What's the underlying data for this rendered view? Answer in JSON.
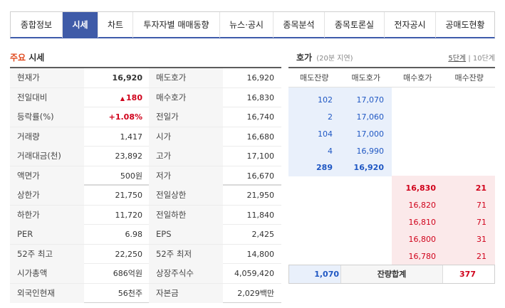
{
  "tabs": [
    "종합정보",
    "시세",
    "차트",
    "투자자별 매매동향",
    "뉴스·공시",
    "종목분석",
    "종목토론실",
    "전자공시",
    "공매도현황"
  ],
  "left": {
    "title_highlight": "주요",
    "title_rest": " 시세",
    "rows": [
      {
        "l1": "현재가",
        "v1": "16,920",
        "l2": "매도호가",
        "v2": "16,920"
      },
      {
        "l1": "전일대비",
        "v1": "180",
        "v1_icon": "▲",
        "l2": "매수호가",
        "v2": "16,830"
      },
      {
        "l1": "등락률(%)",
        "v1": "+1.08%",
        "l2": "전일가",
        "v2": "16,740"
      },
      {
        "l1": "거래량",
        "v1": "1,417",
        "l2": "시가",
        "v2": "16,680"
      },
      {
        "l1": "거래대금(천)",
        "v1": "23,892",
        "l2": "고가",
        "v2": "17,100"
      },
      {
        "l1": "액면가",
        "v1": "500원",
        "l2": "저가",
        "v2": "16,670"
      },
      {
        "l1": "상한가",
        "v1": "21,750",
        "l2": "전일상한",
        "v2": "21,950"
      },
      {
        "l1": "하한가",
        "v1": "11,720",
        "l2": "전일하한",
        "v2": "11,840"
      },
      {
        "l1": "PER",
        "v1": "6.98",
        "l2": "EPS",
        "v2": "2,425"
      },
      {
        "l1": "52주 최고",
        "v1": "22,250",
        "l2": "52주 최저",
        "v2": "14,800"
      },
      {
        "l1": "시가총액",
        "v1": "686억원",
        "l2": "상장주식수",
        "v2": "4,059,420"
      },
      {
        "l1": "외국인현재",
        "v1": "56천주",
        "l2": "자본금",
        "v2": "2,029백만"
      }
    ]
  },
  "right": {
    "title": "호가",
    "subtitle": "(20분 지연)",
    "step5": "5단계",
    "step_sep": "|",
    "step10": "10단계",
    "headers": [
      "매도잔량",
      "매도호가",
      "매수호가",
      "매수잔량"
    ],
    "asks": [
      {
        "qty": "102",
        "price": "17,070"
      },
      {
        "qty": "2",
        "price": "17,060"
      },
      {
        "qty": "104",
        "price": "17,000"
      },
      {
        "qty": "4",
        "price": "16,990"
      },
      {
        "qty": "289",
        "price": "16,920"
      }
    ],
    "bids": [
      {
        "price": "16,830",
        "qty": "21"
      },
      {
        "price": "16,820",
        "qty": "71"
      },
      {
        "price": "16,810",
        "qty": "71"
      },
      {
        "price": "16,800",
        "qty": "31"
      },
      {
        "price": "16,780",
        "qty": "21"
      }
    ],
    "total_ask": "1,070",
    "total_label": "잔량합계",
    "total_bid": "377"
  },
  "colors": {
    "accent": "#3f5ba8",
    "up": "#d0021b",
    "ask": "#1f57c3"
  }
}
